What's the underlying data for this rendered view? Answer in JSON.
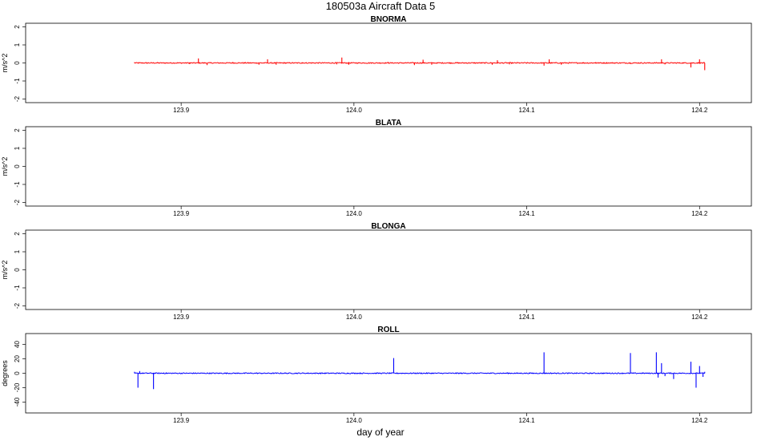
{
  "figure": {
    "title": "180503a   Aircraft Data 5",
    "xlabel": "day of year"
  },
  "colors": {
    "red_series": "#ff0000",
    "blue_series": "#0000ff",
    "frame": "#000000"
  },
  "chart_data": [
    {
      "type": "line",
      "title": "BNORMA",
      "ylabel": "m/s^2",
      "xlim": [
        123.81,
        124.23
      ],
      "ylim": [
        -2.2,
        2.2
      ],
      "xticks": [
        "123.9",
        "124.0",
        "124.1",
        "124.2"
      ],
      "yticks": [
        "-2",
        "-1",
        "0",
        "1",
        "2"
      ],
      "series": [
        {
          "color": "#ff0000",
          "x_range": [
            123.873,
            124.203
          ],
          "baseline": 0,
          "x": [
            123.873,
            123.88,
            123.89,
            123.905,
            123.91,
            123.915,
            123.93,
            123.945,
            123.95,
            123.955,
            123.97,
            123.99,
            123.993,
            123.997,
            124.02,
            124.035,
            124.04,
            124.045,
            124.06,
            124.08,
            124.083,
            124.09,
            124.11,
            124.113,
            124.12,
            124.14,
            124.16,
            124.178,
            124.18,
            124.195,
            124.2,
            124.203
          ],
          "y": [
            0.04,
            -0.03,
            0.02,
            -0.06,
            0.25,
            -0.12,
            0.05,
            -0.1,
            0.2,
            -0.1,
            0.04,
            -0.08,
            0.3,
            -0.1,
            0.05,
            -0.12,
            0.18,
            -0.1,
            0.04,
            -0.1,
            0.15,
            -0.08,
            -0.15,
            0.2,
            -0.1,
            0.05,
            -0.06,
            0.2,
            -0.08,
            -0.25,
            0.2,
            -0.4
          ]
        }
      ]
    },
    {
      "type": "line",
      "title": "BLATA",
      "ylabel": "m/s^2",
      "xlim": [
        123.81,
        124.23
      ],
      "ylim": [
        -2.2,
        2.2
      ],
      "xticks": [
        "123.9",
        "124.0",
        "124.1",
        "124.2"
      ],
      "yticks": [
        "-2",
        "-1",
        "0",
        "1",
        "2"
      ],
      "series": []
    },
    {
      "type": "line",
      "title": "BLONGA",
      "ylabel": "m/s^2",
      "xlim": [
        123.81,
        124.23
      ],
      "ylim": [
        -2.2,
        2.2
      ],
      "xticks": [
        "123.9",
        "124.0",
        "124.1",
        "124.2"
      ],
      "yticks": [
        "-2",
        "-1",
        "0",
        "1",
        "2"
      ],
      "series": []
    },
    {
      "type": "line",
      "title": "ROLL",
      "ylabel": "degrees",
      "xlim": [
        123.81,
        124.23
      ],
      "ylim": [
        -55,
        55
      ],
      "xticks": [
        "123.9",
        "124.0",
        "124.1",
        "124.2"
      ],
      "yticks": [
        "-40",
        "-20",
        "0",
        "20",
        "40"
      ],
      "series": [
        {
          "color": "#0000ff",
          "x_range": [
            123.873,
            124.203
          ],
          "baseline": 0,
          "x": [
            123.873,
            123.875,
            123.876,
            123.88,
            123.884,
            123.885,
            123.89,
            124.023,
            124.024,
            124.11,
            124.111,
            124.16,
            124.161,
            124.175,
            124.176,
            124.178,
            124.18,
            124.185,
            124.195,
            124.198,
            124.2,
            124.202,
            124.203
          ],
          "y": [
            2,
            -20,
            3,
            1,
            -22,
            0,
            1,
            21,
            0,
            29,
            0,
            28,
            0,
            29,
            -6,
            14,
            -4,
            -8,
            16,
            -20,
            10,
            -5,
            2
          ]
        }
      ]
    }
  ]
}
